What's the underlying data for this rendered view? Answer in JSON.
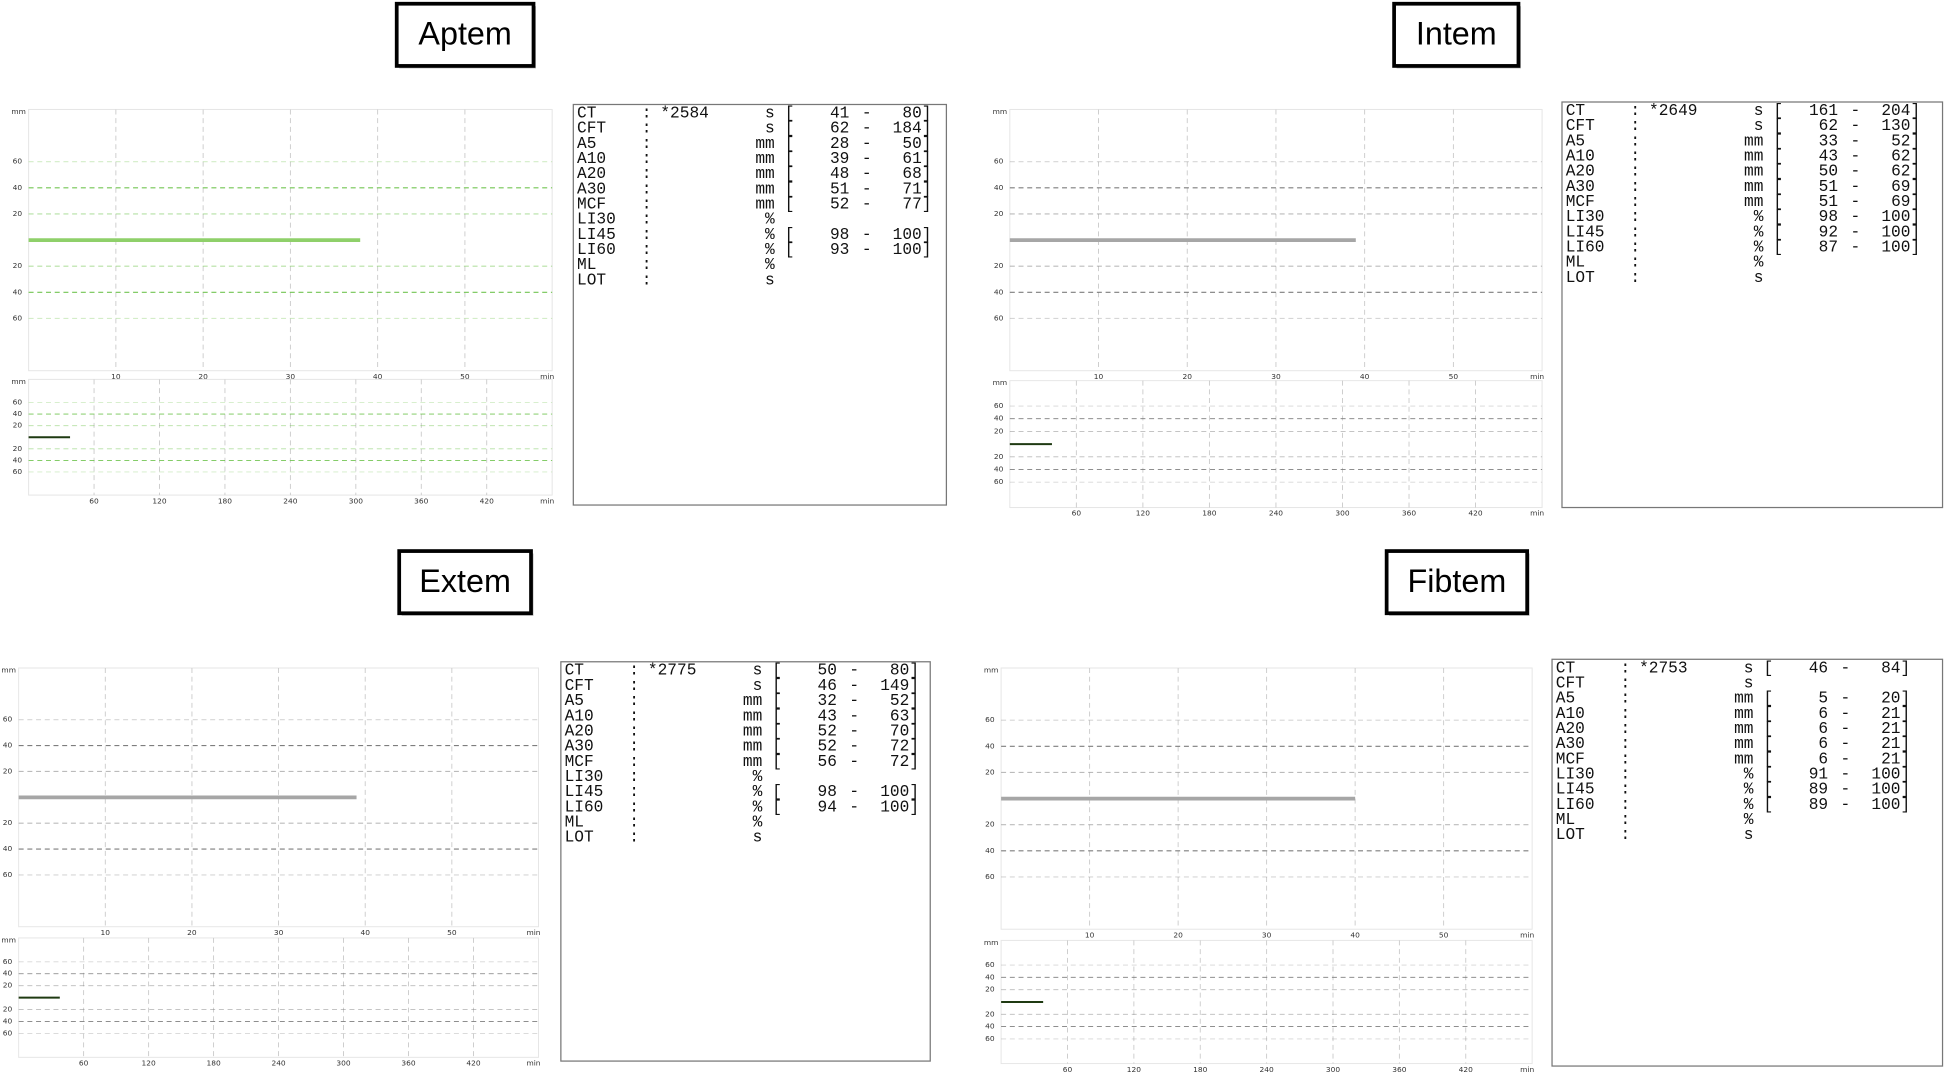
{
  "panels": [
    {
      "title": "Aptem",
      "grid_color": "#6cc24a",
      "graph": {
        "y_unit": "mm",
        "x_unit": "min",
        "xlim": [
          0,
          60
        ],
        "ylim": [
          -100,
          100
        ],
        "xticks": [
          10,
          20,
          30,
          40,
          50
        ],
        "yticks": [
          60,
          40,
          20,
          {
            "value": -20,
            "label": "20"
          },
          {
            "value": -40,
            "label": "40"
          },
          {
            "value": -60,
            "label": "60"
          }
        ],
        "trace_end": 38,
        "trace_color": "#8fd06a"
      },
      "overview": {
        "y_unit": "mm",
        "x_unit": "min",
        "xlim": [
          0,
          480
        ],
        "ylim": [
          -100,
          100
        ],
        "xticks": [
          60,
          120,
          180,
          240,
          300,
          360,
          420
        ],
        "yticks": [
          60,
          40,
          20,
          {
            "value": -20,
            "label": "20"
          },
          {
            "value": -40,
            "label": "40"
          },
          {
            "value": -60,
            "label": "60"
          }
        ],
        "trace_end": 38,
        "trace_color": "#1f3a12"
      },
      "table": {
        "rows": [
          {
            "param": "CT",
            "colon": ":",
            "value": "*2584",
            "unit": "s",
            "open": "[",
            "low": "41",
            "dash": "-",
            "high": "80]"
          },
          {
            "param": "CFT",
            "colon": ":",
            "unit": "s",
            "open": "[",
            "low": "62",
            "dash": "-",
            "high": "184]"
          },
          {
            "param": "A5",
            "colon": ":",
            "unit": "mm",
            "open": "[",
            "low": "28",
            "dash": "-",
            "high": "50]"
          },
          {
            "param": "A10",
            "colon": ":",
            "unit": "mm",
            "open": "[",
            "low": "39",
            "dash": "-",
            "high": "61]"
          },
          {
            "param": "A20",
            "colon": ":",
            "unit": "mm",
            "open": "[",
            "low": "48",
            "dash": "-",
            "high": "68]"
          },
          {
            "param": "A30",
            "colon": ":",
            "unit": "mm",
            "open": "[",
            "low": "51",
            "dash": "-",
            "high": "71]"
          },
          {
            "param": "MCF",
            "colon": ":",
            "unit": "mm",
            "open": "[",
            "low": "52",
            "dash": "-",
            "high": "77]"
          },
          {
            "param": "LI30",
            "colon": ":",
            "unit": "%"
          },
          {
            "param": "LI45",
            "colon": ":",
            "unit": "%",
            "open": "[",
            "low": "98",
            "dash": "-",
            "high": "100]"
          },
          {
            "param": "LI60",
            "colon": ":",
            "unit": "%",
            "open": "[",
            "low": "93",
            "dash": "-",
            "high": "100]"
          },
          {
            "param": "ML",
            "colon": ":",
            "unit": "%"
          },
          {
            "param": "LOT",
            "colon": ":",
            "unit": "s"
          }
        ]
      }
    },
    {
      "title": "Intem",
      "grid_color": "#777777",
      "graph": {
        "y_unit": "mm",
        "x_unit": "min",
        "xlim": [
          0,
          60
        ],
        "ylim": [
          -100,
          100
        ],
        "xticks": [
          10,
          20,
          30,
          40,
          50
        ],
        "yticks": [
          60,
          40,
          20,
          {
            "value": -20,
            "label": "20"
          },
          {
            "value": -40,
            "label": "40"
          },
          {
            "value": -60,
            "label": "60"
          }
        ],
        "trace_end": 39,
        "trace_color": "#a6a6a6"
      },
      "overview": {
        "y_unit": "mm",
        "x_unit": "min",
        "xlim": [
          0,
          480
        ],
        "ylim": [
          -100,
          100
        ],
        "xticks": [
          60,
          120,
          180,
          240,
          300,
          360,
          420
        ],
        "yticks": [
          60,
          40,
          20,
          {
            "value": -20,
            "label": "20"
          },
          {
            "value": -40,
            "label": "40"
          },
          {
            "value": -60,
            "label": "60"
          }
        ],
        "trace_end": 38,
        "trace_color": "#1f3a12"
      },
      "table": {
        "rows": [
          {
            "param": "CT",
            "colon": ":",
            "value": "*2649",
            "unit": "s",
            "open": "[",
            "low": "161",
            "dash": "-",
            "high": "204]"
          },
          {
            "param": "CFT",
            "colon": ":",
            "unit": "s",
            "open": "[",
            "low": "62",
            "dash": "-",
            "high": "130]"
          },
          {
            "param": "A5",
            "colon": ":",
            "unit": "mm",
            "open": "[",
            "low": "33",
            "dash": "-",
            "high": "52]"
          },
          {
            "param": "A10",
            "colon": ":",
            "unit": "mm",
            "open": "[",
            "low": "43",
            "dash": "-",
            "high": "62]"
          },
          {
            "param": "A20",
            "colon": ":",
            "unit": "mm",
            "open": "[",
            "low": "50",
            "dash": "-",
            "high": "62]"
          },
          {
            "param": "A30",
            "colon": ":",
            "unit": "mm",
            "open": "[",
            "low": "51",
            "dash": "-",
            "high": "69]"
          },
          {
            "param": "MCF",
            "colon": ":",
            "unit": "mm",
            "open": "[",
            "low": "51",
            "dash": "-",
            "high": "69]"
          },
          {
            "param": "LI30",
            "colon": ":",
            "unit": "%",
            "open": "[",
            "low": "98",
            "dash": "-",
            "high": "100]"
          },
          {
            "param": "LI45",
            "colon": ":",
            "unit": "%",
            "open": "[",
            "low": "92",
            "dash": "-",
            "high": "100]"
          },
          {
            "param": "LI60",
            "colon": ":",
            "unit": "%",
            "open": "[",
            "low": "87",
            "dash": "-",
            "high": "100]"
          },
          {
            "param": "ML",
            "colon": ":",
            "unit": "%"
          },
          {
            "param": "LOT",
            "colon": ":",
            "unit": "s"
          }
        ]
      }
    },
    {
      "title": "Extem",
      "grid_color": "#777777",
      "graph": {
        "y_unit": "mm",
        "x_unit": "min",
        "xlim": [
          0,
          60
        ],
        "ylim": [
          -100,
          100
        ],
        "xticks": [
          10,
          20,
          30,
          40,
          50
        ],
        "yticks": [
          60,
          40,
          20,
          {
            "value": -20,
            "label": "20"
          },
          {
            "value": -40,
            "label": "40"
          },
          {
            "value": -60,
            "label": "60"
          }
        ],
        "trace_end": 39,
        "trace_color": "#a6a6a6"
      },
      "overview": {
        "y_unit": "mm",
        "x_unit": "min",
        "xlim": [
          0,
          480
        ],
        "ylim": [
          -100,
          100
        ],
        "xticks": [
          60,
          120,
          180,
          240,
          300,
          360,
          420
        ],
        "yticks": [
          60,
          40,
          20,
          {
            "value": -20,
            "label": "20"
          },
          {
            "value": -40,
            "label": "40"
          },
          {
            "value": -60,
            "label": "60"
          }
        ],
        "trace_end": 38,
        "trace_color": "#1f3a12"
      },
      "table": {
        "rows": [
          {
            "param": "CT",
            "colon": ":",
            "value": "*2775",
            "unit": "s",
            "open": "[",
            "low": "50",
            "dash": "-",
            "high": "80]"
          },
          {
            "param": "CFT",
            "colon": ":",
            "unit": "s",
            "open": "[",
            "low": "46",
            "dash": "-",
            "high": "149]"
          },
          {
            "param": "A5",
            "colon": ":",
            "unit": "mm",
            "open": "[",
            "low": "32",
            "dash": "-",
            "high": "52]"
          },
          {
            "param": "A10",
            "colon": ":",
            "unit": "mm",
            "open": "[",
            "low": "43",
            "dash": "-",
            "high": "63]"
          },
          {
            "param": "A20",
            "colon": ":",
            "unit": "mm",
            "open": "[",
            "low": "52",
            "dash": "-",
            "high": "70]"
          },
          {
            "param": "A30",
            "colon": ":",
            "unit": "mm",
            "open": "[",
            "low": "52",
            "dash": "-",
            "high": "72]"
          },
          {
            "param": "MCF",
            "colon": ":",
            "unit": "mm",
            "open": "[",
            "low": "56",
            "dash": "-",
            "high": "72]"
          },
          {
            "param": "LI30",
            "colon": ":",
            "unit": "%"
          },
          {
            "param": "LI45",
            "colon": ":",
            "unit": "%",
            "open": "[",
            "low": "98",
            "dash": "-",
            "high": "100]"
          },
          {
            "param": "LI60",
            "colon": ":",
            "unit": "%",
            "open": "[",
            "low": "94",
            "dash": "-",
            "high": "100]"
          },
          {
            "param": "ML",
            "colon": ":",
            "unit": "%"
          },
          {
            "param": "LOT",
            "colon": ":",
            "unit": "s"
          }
        ]
      }
    },
    {
      "title": "Fibtem",
      "grid_color": "#777777",
      "graph": {
        "y_unit": "mm",
        "x_unit": "min",
        "xlim": [
          0,
          60
        ],
        "ylim": [
          -100,
          100
        ],
        "xticks": [
          10,
          20,
          30,
          40,
          50
        ],
        "yticks": [
          60,
          40,
          20,
          {
            "value": -20,
            "label": "20"
          },
          {
            "value": -40,
            "label": "40"
          },
          {
            "value": -60,
            "label": "60"
          }
        ],
        "trace_end": 40,
        "trace_color": "#a6a6a6"
      },
      "overview": {
        "y_unit": "mm",
        "x_unit": "min",
        "xlim": [
          0,
          480
        ],
        "ylim": [
          -100,
          100
        ],
        "xticks": [
          60,
          120,
          180,
          240,
          300,
          360,
          420
        ],
        "yticks": [
          60,
          40,
          20,
          {
            "value": -20,
            "label": "20"
          },
          {
            "value": -40,
            "label": "40"
          },
          {
            "value": -60,
            "label": "60"
          }
        ],
        "trace_end": 38,
        "trace_color": "#1f3a12"
      },
      "table": {
        "rows": [
          {
            "param": "CT",
            "colon": ":",
            "value": "*2753",
            "unit": "s",
            "open": "[",
            "low": "46",
            "dash": "-",
            "high": "84]"
          },
          {
            "param": "CFT",
            "colon": ":",
            "unit": "s"
          },
          {
            "param": "A5",
            "colon": ":",
            "unit": "mm",
            "open": "[",
            "low": "5",
            "dash": "-",
            "high": "20]"
          },
          {
            "param": "A10",
            "colon": ":",
            "unit": "mm",
            "open": "[",
            "low": "6",
            "dash": "-",
            "high": "21]"
          },
          {
            "param": "A20",
            "colon": ":",
            "unit": "mm",
            "open": "[",
            "low": "6",
            "dash": "-",
            "high": "21]"
          },
          {
            "param": "A30",
            "colon": ":",
            "unit": "mm",
            "open": "[",
            "low": "6",
            "dash": "-",
            "high": "21]"
          },
          {
            "param": "MCF",
            "colon": ":",
            "unit": "mm",
            "open": "[",
            "low": "6",
            "dash": "-",
            "high": "21]"
          },
          {
            "param": "LI30",
            "colon": ":",
            "unit": "%",
            "open": "[",
            "low": "91",
            "dash": "-",
            "high": "100]"
          },
          {
            "param": "LI45",
            "colon": ":",
            "unit": "%",
            "open": "[",
            "low": "89",
            "dash": "-",
            "high": "100]"
          },
          {
            "param": "LI60",
            "colon": ":",
            "unit": "%",
            "open": "[",
            "low": "89",
            "dash": "-",
            "high": "100]"
          },
          {
            "param": "ML",
            "colon": ":",
            "unit": "%"
          },
          {
            "param": "LOT",
            "colon": ":",
            "unit": "s"
          }
        ]
      }
    }
  ]
}
